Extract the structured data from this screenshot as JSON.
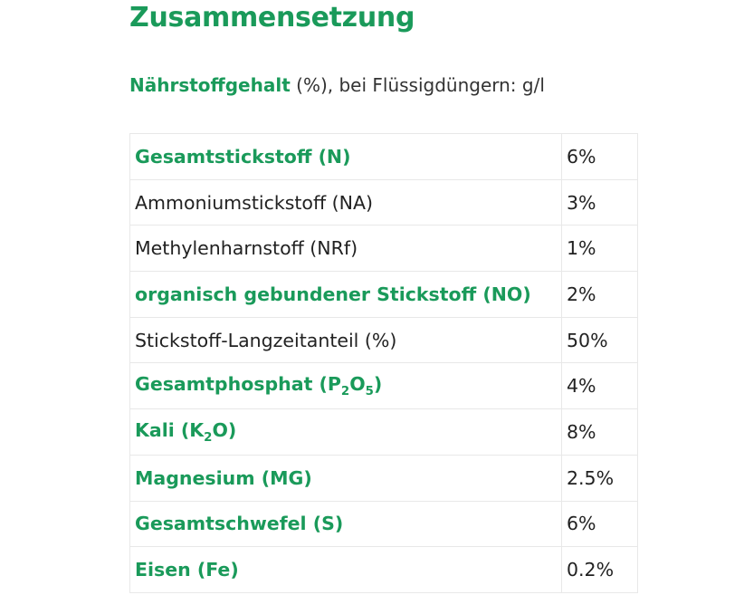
{
  "title": "Zusammensetzung",
  "subtitle": {
    "bold": "Nährstoffgehalt",
    "rest": " (%), bei Flüssigdüngern: g/l"
  },
  "accent_color": "#1a9a5a",
  "rows": [
    {
      "label": "Gesamtstickstoff (N)",
      "value": "6%",
      "bold": true
    },
    {
      "label": "Ammoniumstickstoff (NA)",
      "value": "3%",
      "bold": false
    },
    {
      "label": "Methylenharnstoff (NRf)",
      "value": "1%",
      "bold": false
    },
    {
      "label": "organisch gebundener Stickstoff (NO)",
      "value": "2%",
      "bold": true
    },
    {
      "label": "Stickstoff-Langzeitanteil (%)",
      "value": "50%",
      "bold": false
    },
    {
      "label": "Gesamtphosphat (P<sub>2</sub>O<sub>5</sub>)",
      "value": "4%",
      "bold": true
    },
    {
      "label": "Kali (K<sub>2</sub>O)",
      "value": "8%",
      "bold": true
    },
    {
      "label": "Magnesium (MG)",
      "value": "2.5%",
      "bold": true
    },
    {
      "label": "Gesamtschwefel (S)",
      "value": "6%",
      "bold": true
    },
    {
      "label": "Eisen (Fe)",
      "value": "0.2%",
      "bold": true
    }
  ]
}
